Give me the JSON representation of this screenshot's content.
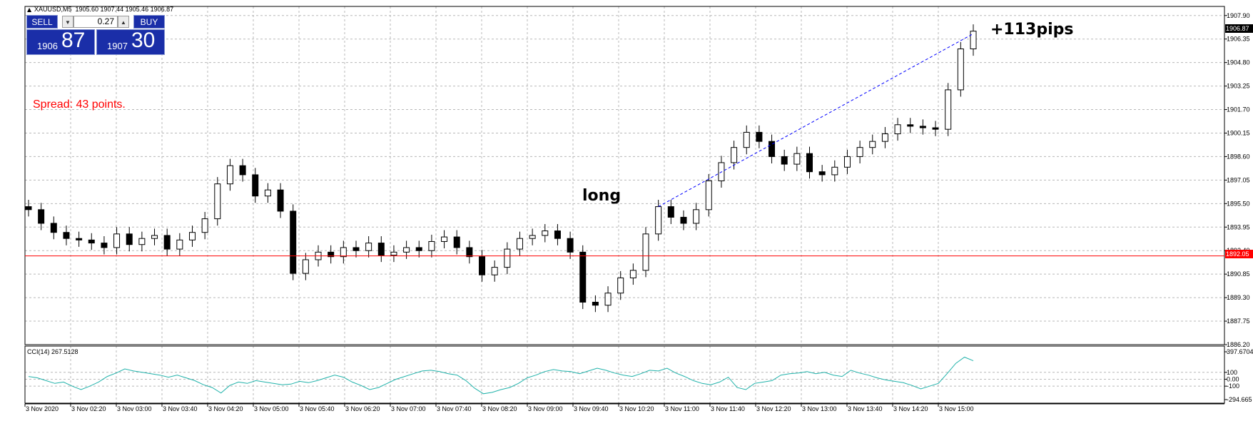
{
  "header": {
    "symbol_line": "XAUUSD,M5  1905.60 1907.44 1905.46 1906.87"
  },
  "trade_panel": {
    "sell_label": "SELL",
    "buy_label": "BUY",
    "volume": "0.27",
    "bid_small": "1906",
    "bid_big": "87",
    "ask_small": "1907",
    "ask_big": "30"
  },
  "annotations": {
    "spread": "Spread: 43 points.",
    "long": "long",
    "pips": "+113pips"
  },
  "colors": {
    "grid": "#b8b8b8",
    "hline": "#ff0000",
    "trend": "#0000ff",
    "cci": "#20b2aa",
    "candle": "#000000",
    "spread_text": "#ff0000",
    "panel": "#1a2ea8"
  },
  "chart_data": [
    {
      "type": "candlestick",
      "title": "XAUUSD,M5",
      "ohlc_header": {
        "open": 1905.6,
        "high": 1907.44,
        "low": 1905.46,
        "close": 1906.87
      },
      "ylim": [
        1886.2,
        1908.5
      ],
      "y_ticks": [
        "1907.90",
        "1906.35",
        "1904.80",
        "1903.25",
        "1901.70",
        "1900.15",
        "1898.60",
        "1897.05",
        "1895.50",
        "1893.95",
        "1892.40",
        "1890.85",
        "1889.30",
        "1887.75",
        "1886.20"
      ],
      "current_price_label": "1906.87",
      "hline_label": "1892.05",
      "hline_value": 1892.05,
      "x_ticks": [
        "3 Nov 2020",
        "3 Nov 02:20",
        "3 Nov 03:00",
        "3 Nov 03:40",
        "3 Nov 04:20",
        "3 Nov 05:00",
        "3 Nov 05:40",
        "3 Nov 06:20",
        "3 Nov 07:00",
        "3 Nov 07:40",
        "3 Nov 08:20",
        "3 Nov 09:00",
        "3 Nov 09:40",
        "3 Nov 10:20",
        "3 Nov 11:00",
        "3 Nov 11:40",
        "3 Nov 12:20",
        "3 Nov 13:00",
        "3 Nov 13:40",
        "3 Nov 14:20",
        "3 Nov 15:00"
      ],
      "key_closes": [
        1895.1,
        1894.2,
        1893.6,
        1893.2,
        1893.1,
        1892.9,
        1892.6,
        1893.5,
        1892.8,
        1893.2,
        1893.4,
        1892.5,
        1893.1,
        1893.6,
        1894.5,
        1896.8,
        1898.0,
        1897.4,
        1896.0,
        1896.4,
        1895.0,
        1890.9,
        1891.8,
        1892.3,
        1892.0,
        1892.6,
        1892.4,
        1892.9,
        1892.1,
        1892.3,
        1892.6,
        1892.4,
        1893.0,
        1893.3,
        1892.6,
        1892.0,
        1890.8,
        1891.3,
        1892.5,
        1893.2,
        1893.4,
        1893.7,
        1893.2,
        1892.3,
        1889.0,
        1888.8,
        1889.6,
        1890.6,
        1891.1,
        1893.5,
        1895.3,
        1894.6,
        1894.2,
        1895.1,
        1897.0,
        1898.2,
        1899.2,
        1900.2,
        1899.6,
        1898.6,
        1898.1,
        1898.8,
        1897.6,
        1897.4,
        1897.9,
        1898.6,
        1899.2,
        1899.6,
        1900.1,
        1900.7,
        1900.6,
        1900.5,
        1900.4,
        1903.0,
        1905.7,
        1906.87
      ],
      "trendline": {
        "from_value": 1895.3,
        "to_value": 1906.7
      },
      "trend_pips": "+113pips"
    },
    {
      "type": "line",
      "title": "CCI(14) 267.5128",
      "indicator": "CCI(14)",
      "last_value": 267.5128,
      "y_ticks": [
        "397.6704",
        "100",
        "0.00",
        "-100",
        "-294.665"
      ],
      "ylim": [
        -294.665,
        397.6704
      ],
      "values": [
        40,
        20,
        -20,
        -60,
        -40,
        -100,
        -150,
        -100,
        -40,
        40,
        90,
        150,
        120,
        100,
        80,
        60,
        30,
        60,
        20,
        -20,
        -80,
        -120,
        -200,
        -90,
        -40,
        -60,
        -20,
        -40,
        -60,
        -80,
        -70,
        -30,
        -50,
        -20,
        20,
        60,
        30,
        -40,
        -90,
        -150,
        -120,
        -60,
        0,
        40,
        80,
        120,
        130,
        110,
        80,
        60,
        -20,
        -130,
        -210,
        -190,
        -150,
        -120,
        -60,
        20,
        60,
        110,
        140,
        120,
        110,
        80,
        120,
        160,
        130,
        90,
        60,
        40,
        80,
        130,
        120,
        160,
        90,
        40,
        -20,
        -60,
        -80,
        -40,
        30,
        -120,
        -150,
        -60,
        -40,
        -20,
        60,
        80,
        90,
        110,
        80,
        100,
        60,
        40,
        130,
        90,
        60,
        20,
        -10,
        -30,
        -50,
        -90,
        -140,
        -100,
        -60,
        80,
        230,
        320,
        267.5
      ]
    }
  ]
}
